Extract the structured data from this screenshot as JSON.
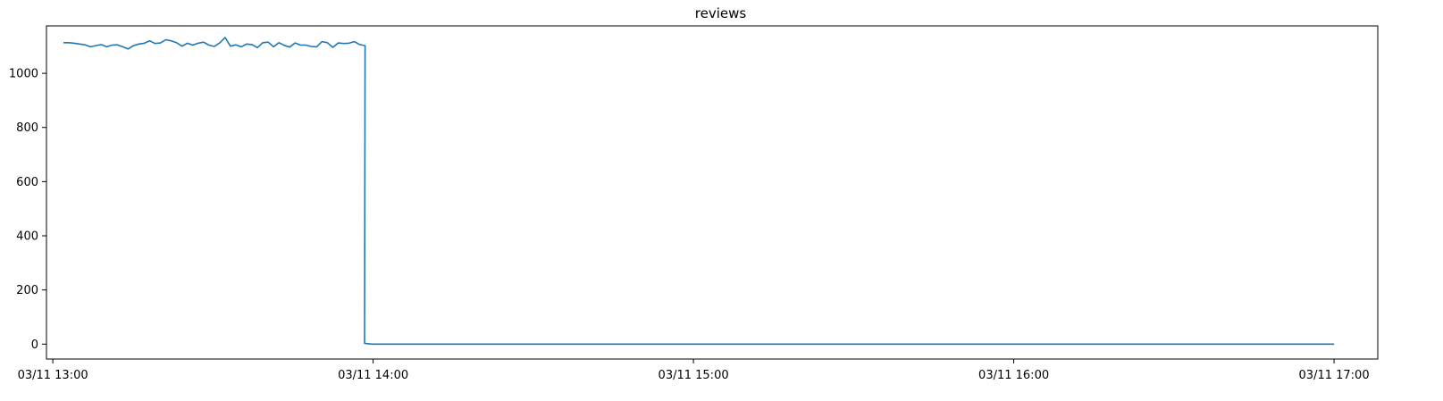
{
  "chart_data": {
    "type": "line",
    "title": "reviews",
    "xlabel": "",
    "ylabel": "",
    "x_axis": {
      "type": "time",
      "range": [
        "03/11 13:00",
        "03/11 17:07"
      ],
      "tick_labels": [
        "03/11 13:00",
        "03/11 14:00",
        "03/11 15:00",
        "03/11 16:00",
        "03/11 17:00"
      ]
    },
    "y_axis": {
      "range": [
        -55,
        1175
      ],
      "ticks": [
        0,
        200,
        400,
        600,
        800,
        1000
      ],
      "tick_labels": [
        "0",
        "200",
        "400",
        "600",
        "800",
        "1000"
      ]
    },
    "grid": false,
    "legend": "none",
    "series": [
      {
        "color": "#1f77b4",
        "x": [
          "03/11 13:02",
          "03/11 13:04",
          "03/11 13:06",
          "03/11 13:08",
          "03/11 13:10",
          "03/11 13:12",
          "03/11 13:14",
          "03/11 13:16",
          "03/11 13:18",
          "03/11 13:20",
          "03/11 13:22",
          "03/11 13:24",
          "03/11 13:26",
          "03/11 13:28",
          "03/11 13:30",
          "03/11 13:32",
          "03/11 13:34",
          "03/11 13:36",
          "03/11 13:38",
          "03/11 13:40",
          "03/11 13:42",
          "03/11 13:44",
          "03/11 13:46",
          "03/11 13:48",
          "03/11 13:50",
          "03/11 13:52",
          "03/11 13:54",
          "03/11 13:56",
          "03/11 13:58",
          "03/11 13:59",
          "03/11 14:00",
          "03/11 14:02",
          "03/11 17:00"
        ],
        "values": [
          1113,
          1113,
          1109,
          1104,
          1097,
          1101,
          1106,
          1096,
          1091,
          1104,
          1113,
          1117,
          1124,
          1111,
          1102,
          1109,
          1110,
          1105,
          1126,
          1097,
          1103,
          1100,
          1108,
          1117,
          1104,
          1097,
          1102,
          1096,
          1119,
          1102,
          2,
          0,
          0
        ],
        "detail_values": [
          1113,
          1113,
          1111,
          1108,
          1105,
          1098,
          1102,
          1106,
          1098,
          1104,
          1105,
          1098,
          1090,
          1102,
          1108,
          1111,
          1120,
          1110,
          1112,
          1124,
          1120,
          1113,
          1100,
          1111,
          1104,
          1111,
          1115,
          1104,
          1099,
          1112,
          1132,
          1100,
          1105,
          1098,
          1108,
          1106,
          1095,
          1113,
          1115,
          1098,
          1113,
          1103,
          1097,
          1112,
          1104,
          1104,
          1099,
          1098,
          1117,
          1113,
          1096,
          1112,
          1110,
          1111,
          1117,
          1106,
          1102,
          3,
          1,
          0,
          0,
          0,
          0
        ]
      }
    ]
  }
}
